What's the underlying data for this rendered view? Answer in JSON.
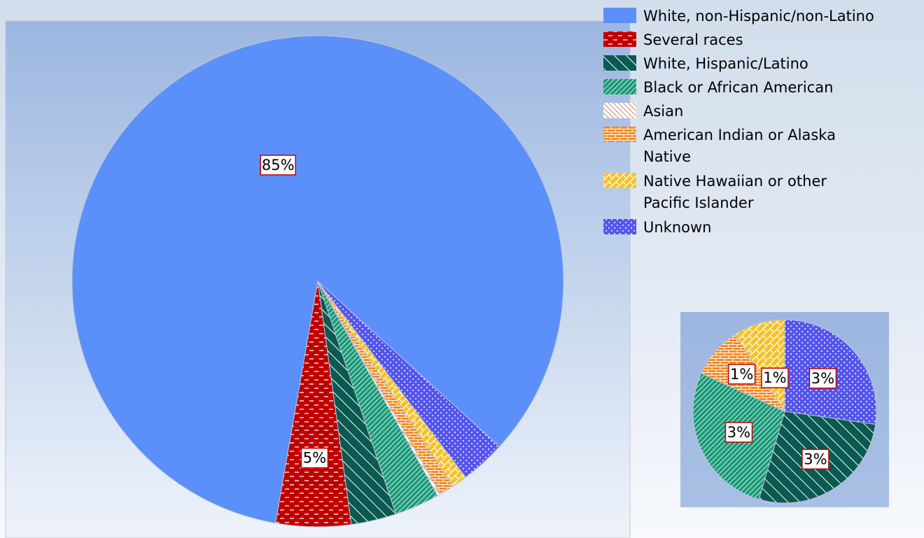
{
  "chart_data": {
    "type": "pie",
    "title": "",
    "main_pie": {
      "slices": [
        {
          "name": "White, non-Hispanic/non-Latino",
          "value": 85,
          "label": "85%"
        },
        {
          "name": "Several races",
          "value": 5,
          "label": "5%"
        },
        {
          "name": "White, Hispanic/Latino",
          "value": 3,
          "label": ""
        },
        {
          "name": "Black or African American",
          "value": 3,
          "label": ""
        },
        {
          "name": "Asian",
          "value": 0.2,
          "label": ""
        },
        {
          "name": "American Indian or Alaska Native",
          "value": 1,
          "label": ""
        },
        {
          "name": "Native Hawaiian or other Pacific Islander",
          "value": 1,
          "label": ""
        },
        {
          "name": "Unknown",
          "value": 3,
          "label": ""
        }
      ]
    },
    "inset_pie": {
      "slices": [
        {
          "name": "Unknown",
          "value": 3,
          "label": "3%"
        },
        {
          "name": "White, Hispanic/Latino",
          "value": 3,
          "label": "3%"
        },
        {
          "name": "Black or African American",
          "value": 3,
          "label": "3%"
        },
        {
          "name": "American Indian or Alaska Native",
          "value": 1,
          "label": "1%"
        },
        {
          "name": "Native Hawaiian or other Pacific Islander",
          "value": 1,
          "label": "1%"
        }
      ]
    },
    "legend": {
      "position": "top-right",
      "items": [
        {
          "lines": [
            "White, non-Hispanic/non-Latino"
          ],
          "color": "#5b8ff9",
          "pattern": "solid"
        },
        {
          "lines": [
            "Several races"
          ],
          "color": "#c00000",
          "pattern": "dash"
        },
        {
          "lines": [
            "White, Hispanic/Latino"
          ],
          "color": "#0a5a52",
          "pattern": "wide-diagonal"
        },
        {
          "lines": [
            "Black or African American"
          ],
          "color": "#1a9a78",
          "pattern": "narrow-diagonal"
        },
        {
          "lines": [
            "Asian"
          ],
          "color": "#c8643c",
          "pattern": "light-diagonal"
        },
        {
          "lines": [
            "American Indian or Alaska",
            "Native"
          ],
          "color": "#f08c28",
          "pattern": "brick"
        },
        {
          "lines": [
            "Native Hawaiian or other",
            "Pacific Islander"
          ],
          "color": "#f5c22a",
          "pattern": "weave"
        },
        {
          "lines": [
            "Unknown"
          ],
          "color": "#5555ee",
          "pattern": "dots"
        }
      ]
    }
  }
}
